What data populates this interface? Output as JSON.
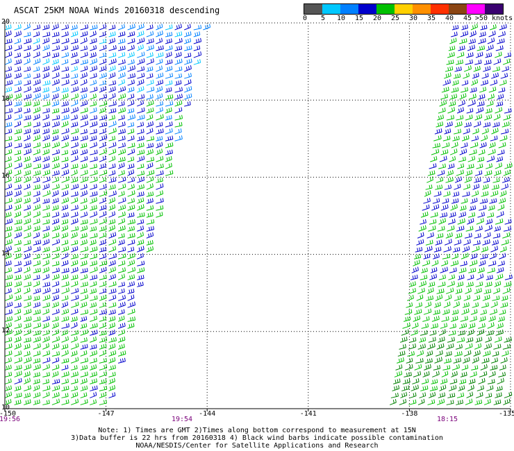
{
  "title": "ASCAT 25KM NOAA Winds 20160318 descending",
  "scale": {
    "labels": [
      "0",
      "5",
      "10",
      "15",
      "20",
      "25",
      "30",
      "35",
      "40",
      "45",
      ">50 knots"
    ],
    "colors": [
      "#555555",
      "#00c8ff",
      "#0080ff",
      "#0000cc",
      "#00c000",
      "#ffd000",
      "#ff9000",
      "#ff3000",
      "#8b4513",
      "#ff00ff",
      "#3a0070"
    ]
  },
  "axes": {
    "lat_labels": [
      "20",
      "18",
      "16",
      "14",
      "12",
      "10"
    ],
    "lon_labels": [
      "-150",
      "-147",
      "-144",
      "-141",
      "-138",
      "-135"
    ]
  },
  "times": [
    "19:56",
    "19:54",
    "18:15"
  ],
  "note": {
    "line1": "Note: 1) Times are GMT 2)Times along bottom correspond to measurement at 15N",
    "line2": "3)Data buffer is 22 hrs from 20160318 4) Black wind barbs indicate possible contamination",
    "line3": "NOAA/NESDIS/Center for Satellite Applications and Research"
  },
  "map_data": {
    "lon_range": [
      -150,
      -135
    ],
    "lat_range": [
      10,
      20
    ],
    "swaths": [
      {
        "name": "west-swath",
        "bounds_top": [
          -150,
          -143.9
        ],
        "bounds_bottom": [
          -150,
          -146.8
        ]
      },
      {
        "name": "east-swath",
        "bounds_top": [
          -136.7,
          -135
        ],
        "bounds_bottom": [
          -138.6,
          -135
        ]
      }
    ]
  }
}
